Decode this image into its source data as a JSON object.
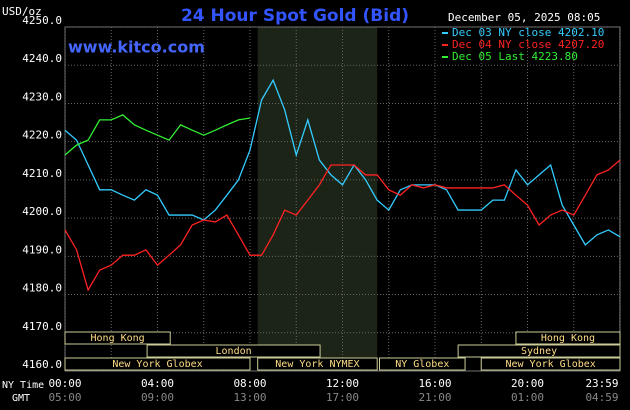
{
  "chart_data": {
    "type": "line",
    "title": "24 Hour Spot Gold (Bid)",
    "date": "December 05, 2025 08:05",
    "watermark": "www.kitco.com",
    "y_unit": "USD/oz",
    "x_row_labels": [
      "NY Time",
      "GMT"
    ],
    "xlim": [
      0,
      24
    ],
    "ylim": [
      4160,
      4250
    ],
    "xticks": [
      {
        "value": 0,
        "label": "00:00"
      },
      {
        "value": 4,
        "label": "04:00"
      },
      {
        "value": 8,
        "label": "08:00"
      },
      {
        "value": 12,
        "label": "12:00"
      },
      {
        "value": 16,
        "label": "16:00"
      },
      {
        "value": 20,
        "label": "20:00"
      },
      {
        "value": 23.983,
        "label": "23:59"
      }
    ],
    "gmt_labels": [
      "05:00",
      "09:00",
      "13:00",
      "17:00",
      "21:00",
      "01:00",
      "04:59"
    ],
    "xminorticks": [
      2,
      6,
      10,
      14,
      18,
      22
    ],
    "yticks": [
      {
        "value": 4160,
        "label": "4160.0"
      },
      {
        "value": 4170,
        "label": "4170.0"
      },
      {
        "value": 4180,
        "label": "4180.0"
      },
      {
        "value": 4190,
        "label": "4190.0"
      },
      {
        "value": 4200,
        "label": "4200.0"
      },
      {
        "value": 4210,
        "label": "4210.0"
      },
      {
        "value": 4220,
        "label": "4220.0"
      },
      {
        "value": 4230,
        "label": "4230.0"
      },
      {
        "value": 4240,
        "label": "4240.0"
      },
      {
        "value": 4250,
        "label": "4250.0"
      }
    ],
    "grid": true,
    "highlight": [
      8.333,
      13.5
    ],
    "x": [
      0,
      0.5,
      1,
      1.5,
      2,
      2.5,
      3,
      3.5,
      4,
      4.5,
      5,
      5.5,
      6,
      6.5,
      7,
      7.5,
      8,
      8.5,
      9,
      9.5,
      10,
      10.5,
      11,
      11.5,
      12,
      12.5,
      13,
      13.5,
      14,
      14.5,
      15,
      15.5,
      16,
      16.5,
      17,
      17.5,
      18,
      18.5,
      19,
      19.5,
      20,
      20.5,
      21,
      21.5,
      22,
      22.5,
      23,
      23.5,
      24
    ],
    "series": [
      {
        "name": "Dec 03 NY close 4202.10",
        "color": "#33ccff",
        "values": [
          4223.0,
          4220.4,
          4213.9,
          4207.4,
          4207.4,
          4206.0,
          4204.7,
          4207.4,
          4206.0,
          4200.8,
          4200.8,
          4200.8,
          4199.5,
          4202.1,
          4206.0,
          4210.0,
          4217.8,
          4230.9,
          4236.1,
          4228.3,
          4216.5,
          4225.7,
          4215.2,
          4211.3,
          4208.7,
          4213.9,
          4210.0,
          4204.7,
          4202.1,
          4207.4,
          4208.7,
          4208.7,
          4208.7,
          4207.4,
          4202.1,
          4202.1,
          4202.1,
          4204.7,
          4204.7,
          4212.6,
          4208.7,
          4211.3,
          4213.9,
          4203.4,
          4198.2,
          4193.0,
          4195.6,
          4196.9,
          4195.1
        ]
      },
      {
        "name": "Dec 04 NY close 4207.20",
        "color": "#ff2222",
        "values": [
          4196.9,
          4191.7,
          4181.2,
          4186.4,
          4187.7,
          4190.3,
          4190.3,
          4191.7,
          4187.7,
          4190.3,
          4193.0,
          4198.2,
          4199.5,
          4199.0,
          4200.8,
          4195.6,
          4190.3,
          4190.3,
          4195.6,
          4202.1,
          4200.8,
          4204.7,
          4208.7,
          4213.9,
          4213.9,
          4213.9,
          4211.3,
          4211.3,
          4207.4,
          4206.0,
          4208.7,
          4207.9,
          4208.7,
          4207.9,
          4207.9,
          4207.9,
          4207.9,
          4207.9,
          4208.7,
          4206.0,
          4203.4,
          4198.2,
          4200.8,
          4202.1,
          4200.8,
          4206.0,
          4211.3,
          4212.6,
          4215.2
        ]
      },
      {
        "name": "Dec 05 Last 4223.80",
        "color": "#33ee33",
        "values": [
          4216.5,
          4219.1,
          4220.4,
          4225.7,
          4225.7,
          4227.0,
          4224.4,
          4223.0,
          4221.7,
          4220.4,
          4224.4,
          4223.0,
          4221.7,
          4223.0,
          4224.4,
          4225.7,
          4226.2,
          null,
          null,
          null,
          null,
          null,
          null,
          null,
          null,
          null,
          null,
          null,
          null,
          null,
          null,
          null,
          null,
          null,
          null,
          null,
          null,
          null,
          null,
          null,
          null,
          null,
          null,
          null,
          null,
          null,
          null,
          null,
          null
        ]
      }
    ],
    "session_rows": [
      [
        {
          "name": "Hong Kong",
          "start": 0,
          "end": 4.55
        },
        {
          "name": "Hong Kong",
          "start": 19.5,
          "end": 24
        }
      ],
      [
        {
          "name": "London",
          "start": 3.55,
          "end": 11.03
        },
        {
          "name": "Sydney",
          "start": 17,
          "end": 24
        }
      ],
      [
        {
          "name": "New York Globex",
          "start": 0,
          "end": 8
        },
        {
          "name": "New York NYMEX",
          "start": 8.333,
          "end": 13.5
        },
        {
          "name": "NY Globex",
          "start": 13.6,
          "end": 17.3
        },
        {
          "name": "New York Globex",
          "start": 18,
          "end": 24
        }
      ]
    ]
  }
}
